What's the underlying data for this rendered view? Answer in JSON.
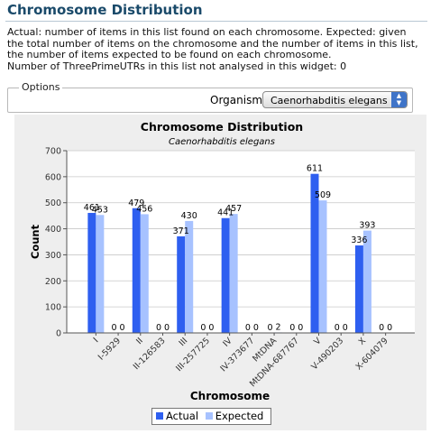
{
  "header": {
    "title": "Chromosome Distribution",
    "description_lines": [
      "Actual: number of items in this list found on each chromosome. Expected: given the total number of items on the chromosome and the number of items in this list, the number of items expected to be found on each chromosome.",
      "Number of ThreePrimeUTRs in this list not analysed in this widget: 0"
    ]
  },
  "options": {
    "legend": "Options",
    "organism_label": "Organism:",
    "organism_value": "Caenorhabditis elegans"
  },
  "colors": {
    "actual": "#2e5ff0",
    "expected": "#a7c2ff"
  },
  "chart_data": {
    "type": "bar",
    "title": "Chromosome Distribution",
    "subtitle": "Caenorhabditis elegans",
    "xlabel": "Chromosome",
    "ylabel": "Count",
    "ylim": [
      0,
      700
    ],
    "yticks": [
      0,
      100,
      200,
      300,
      400,
      500,
      600,
      700
    ],
    "grid": true,
    "legend_placement": "bottom",
    "categories": [
      "I",
      "I-5929",
      "II",
      "II-126583",
      "III",
      "III-257725",
      "IV",
      "IV-373677",
      "MtDNA",
      "MtDNA-687767",
      "V",
      "V-490203",
      "X",
      "X-604079"
    ],
    "series": [
      {
        "name": "Actual",
        "values": [
          461,
          0,
          479,
          0,
          371,
          0,
          441,
          0,
          0,
          0,
          611,
          0,
          336,
          0
        ]
      },
      {
        "name": "Expected",
        "values": [
          453,
          0,
          456,
          0,
          430,
          0,
          457,
          0,
          2,
          0,
          509,
          0,
          393,
          0
        ]
      }
    ],
    "data_labels": [
      [
        "461",
        "453"
      ],
      [
        "0",
        "0"
      ],
      [
        "479",
        "456"
      ],
      [
        "0",
        "0"
      ],
      [
        "371",
        "430"
      ],
      [
        "0",
        "0"
      ],
      [
        "441",
        "457"
      ],
      [
        "0",
        "0"
      ],
      [
        "0",
        "2"
      ],
      [
        "0",
        "0"
      ],
      [
        "611",
        "509"
      ],
      [
        "0",
        "0"
      ],
      [
        "336",
        "393"
      ],
      [
        "0",
        "0"
      ]
    ]
  }
}
